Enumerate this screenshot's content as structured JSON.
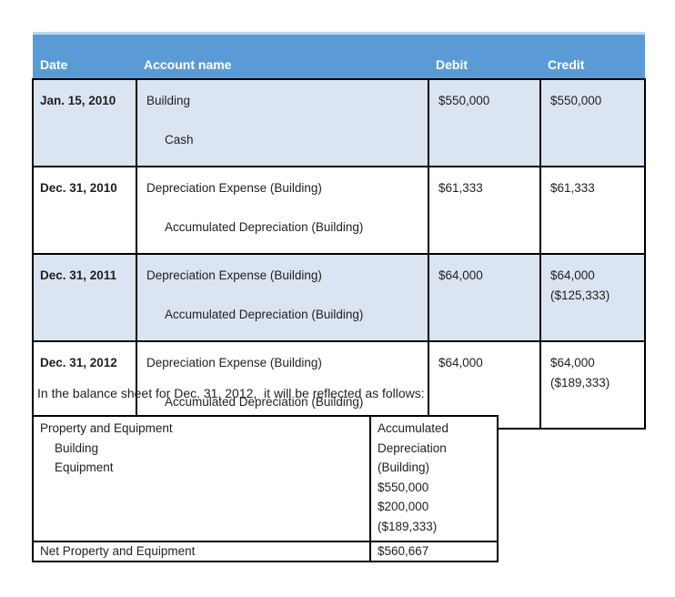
{
  "journal_table": {
    "columns": [
      "Date",
      "Account name",
      "Debit",
      "Credit"
    ],
    "rows": [
      {
        "date": "Jan. 15, 2010",
        "debit_account": "Building",
        "credit_account": "Cash",
        "debit": "$550,000",
        "credit": "$550,000",
        "credit_note": ""
      },
      {
        "date": "Dec. 31, 2010",
        "debit_account": "Depreciation Expense (Building)",
        "credit_account": "Accumulated Depreciation (Building)",
        "debit": "$61,333",
        "credit": "$61,333",
        "credit_note": ""
      },
      {
        "date": "Dec. 31, 2011",
        "debit_account": "Depreciation Expense (Building)",
        "credit_account": "Accumulated Depreciation (Building)",
        "debit": "$64,000",
        "credit": "$64,000",
        "credit_note": "($125,333)"
      },
      {
        "date": "Dec. 31, 2012",
        "debit_account": "Depreciation Expense (Building)",
        "credit_account": "Accumulated Depreciation (Building)",
        "debit": "$64,000",
        "credit": "$64,000",
        "credit_note": "($189,333)"
      }
    ]
  },
  "note": {
    "text": "In the balance sheet for Dec. 31, 2012,  it will be reflected as follows:"
  },
  "balance_sheet_table": {
    "left_column_lines": [
      "Property and Equipment",
      "Building",
      "Equipment"
    ],
    "right_column_lines": [
      "Accumulated",
      "Depreciation",
      "(Building)",
      "$550,000",
      "$200,000",
      "($189,333)"
    ],
    "total_row": {
      "label": "Net Property and Equipment",
      "value": "$560,667"
    }
  },
  "colors": {
    "header_background": "#5b9bd5",
    "header_text": "#ffffff",
    "header_top_border": "#bdd7ee",
    "shaded_row_background": "#dbe5f1",
    "border": "#000000",
    "body_text": "#1f1f1f"
  }
}
